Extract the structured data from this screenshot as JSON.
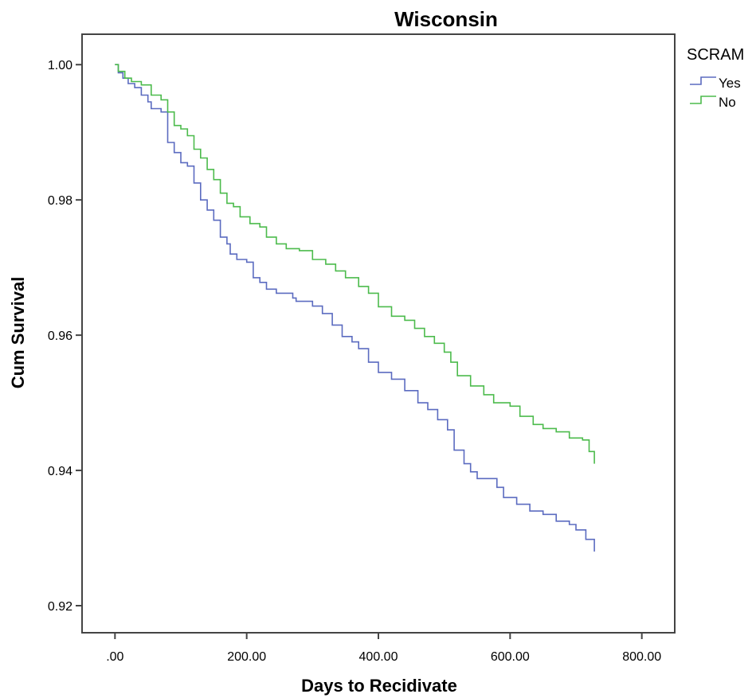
{
  "chart_data": {
    "type": "line",
    "title": "Wisconsin",
    "xlabel": "Days to Recidivate",
    "ylabel": "Cum Survival",
    "xlim": [
      -50,
      850
    ],
    "ylim": [
      0.916,
      1.0045
    ],
    "x_ticks": [
      0,
      200,
      400,
      600,
      800
    ],
    "x_tick_labels": [
      ".00",
      "200.00",
      "400.00",
      "600.00",
      "800.00"
    ],
    "y_ticks": [
      0.92,
      0.94,
      0.96,
      0.98,
      1.0
    ],
    "y_tick_labels": [
      "0.92",
      "0.94",
      "0.96",
      "0.98",
      "1.00"
    ],
    "grid": false,
    "legend": {
      "title": "SCRAM",
      "placement": "right"
    },
    "series": [
      {
        "name": "Yes",
        "color": "#5b6bc0",
        "points": [
          [
            0,
            1.0
          ],
          [
            5,
            0.9988
          ],
          [
            12,
            0.998
          ],
          [
            20,
            0.9972
          ],
          [
            30,
            0.9966
          ],
          [
            40,
            0.9955
          ],
          [
            50,
            0.9945
          ],
          [
            55,
            0.9935
          ],
          [
            70,
            0.993
          ],
          [
            80,
            0.9885
          ],
          [
            90,
            0.987
          ],
          [
            100,
            0.9855
          ],
          [
            110,
            0.985
          ],
          [
            120,
            0.9825
          ],
          [
            130,
            0.98
          ],
          [
            140,
            0.9785
          ],
          [
            150,
            0.977
          ],
          [
            160,
            0.9745
          ],
          [
            170,
            0.9735
          ],
          [
            175,
            0.972
          ],
          [
            185,
            0.9712
          ],
          [
            200,
            0.9708
          ],
          [
            210,
            0.9685
          ],
          [
            220,
            0.9678
          ],
          [
            230,
            0.9668
          ],
          [
            245,
            0.9662
          ],
          [
            270,
            0.9655
          ],
          [
            275,
            0.965
          ],
          [
            300,
            0.9643
          ],
          [
            315,
            0.9632
          ],
          [
            330,
            0.9615
          ],
          [
            345,
            0.9598
          ],
          [
            360,
            0.959
          ],
          [
            370,
            0.958
          ],
          [
            385,
            0.956
          ],
          [
            400,
            0.9545
          ],
          [
            420,
            0.9535
          ],
          [
            440,
            0.9518
          ],
          [
            460,
            0.95
          ],
          [
            475,
            0.949
          ],
          [
            490,
            0.9475
          ],
          [
            505,
            0.946
          ],
          [
            515,
            0.943
          ],
          [
            530,
            0.941
          ],
          [
            540,
            0.9398
          ],
          [
            550,
            0.9388
          ],
          [
            580,
            0.9375
          ],
          [
            590,
            0.936
          ],
          [
            610,
            0.935
          ],
          [
            630,
            0.934
          ],
          [
            650,
            0.9335
          ],
          [
            670,
            0.9325
          ],
          [
            690,
            0.932
          ],
          [
            700,
            0.9312
          ],
          [
            715,
            0.9298
          ],
          [
            728,
            0.928
          ]
        ]
      },
      {
        "name": "No",
        "color": "#4cbb4c",
        "points": [
          [
            0,
            1.0
          ],
          [
            5,
            0.999
          ],
          [
            15,
            0.998
          ],
          [
            25,
            0.9975
          ],
          [
            40,
            0.997
          ],
          [
            55,
            0.9955
          ],
          [
            70,
            0.9948
          ],
          [
            80,
            0.993
          ],
          [
            90,
            0.991
          ],
          [
            100,
            0.9905
          ],
          [
            110,
            0.9895
          ],
          [
            120,
            0.9875
          ],
          [
            130,
            0.9862
          ],
          [
            140,
            0.9845
          ],
          [
            150,
            0.983
          ],
          [
            160,
            0.981
          ],
          [
            170,
            0.9795
          ],
          [
            180,
            0.979
          ],
          [
            190,
            0.9775
          ],
          [
            205,
            0.9765
          ],
          [
            220,
            0.976
          ],
          [
            230,
            0.9745
          ],
          [
            245,
            0.9735
          ],
          [
            260,
            0.9728
          ],
          [
            280,
            0.9725
          ],
          [
            300,
            0.9712
          ],
          [
            320,
            0.9705
          ],
          [
            335,
            0.9695
          ],
          [
            350,
            0.9685
          ],
          [
            370,
            0.9672
          ],
          [
            385,
            0.9662
          ],
          [
            400,
            0.9642
          ],
          [
            420,
            0.9628
          ],
          [
            440,
            0.9622
          ],
          [
            455,
            0.961
          ],
          [
            470,
            0.9598
          ],
          [
            485,
            0.9588
          ],
          [
            500,
            0.9575
          ],
          [
            510,
            0.956
          ],
          [
            520,
            0.954
          ],
          [
            540,
            0.9525
          ],
          [
            560,
            0.9512
          ],
          [
            575,
            0.95
          ],
          [
            600,
            0.9495
          ],
          [
            615,
            0.948
          ],
          [
            635,
            0.9468
          ],
          [
            650,
            0.9462
          ],
          [
            670,
            0.9457
          ],
          [
            690,
            0.9448
          ],
          [
            710,
            0.9445
          ],
          [
            720,
            0.9428
          ],
          [
            728,
            0.941
          ]
        ]
      }
    ]
  }
}
